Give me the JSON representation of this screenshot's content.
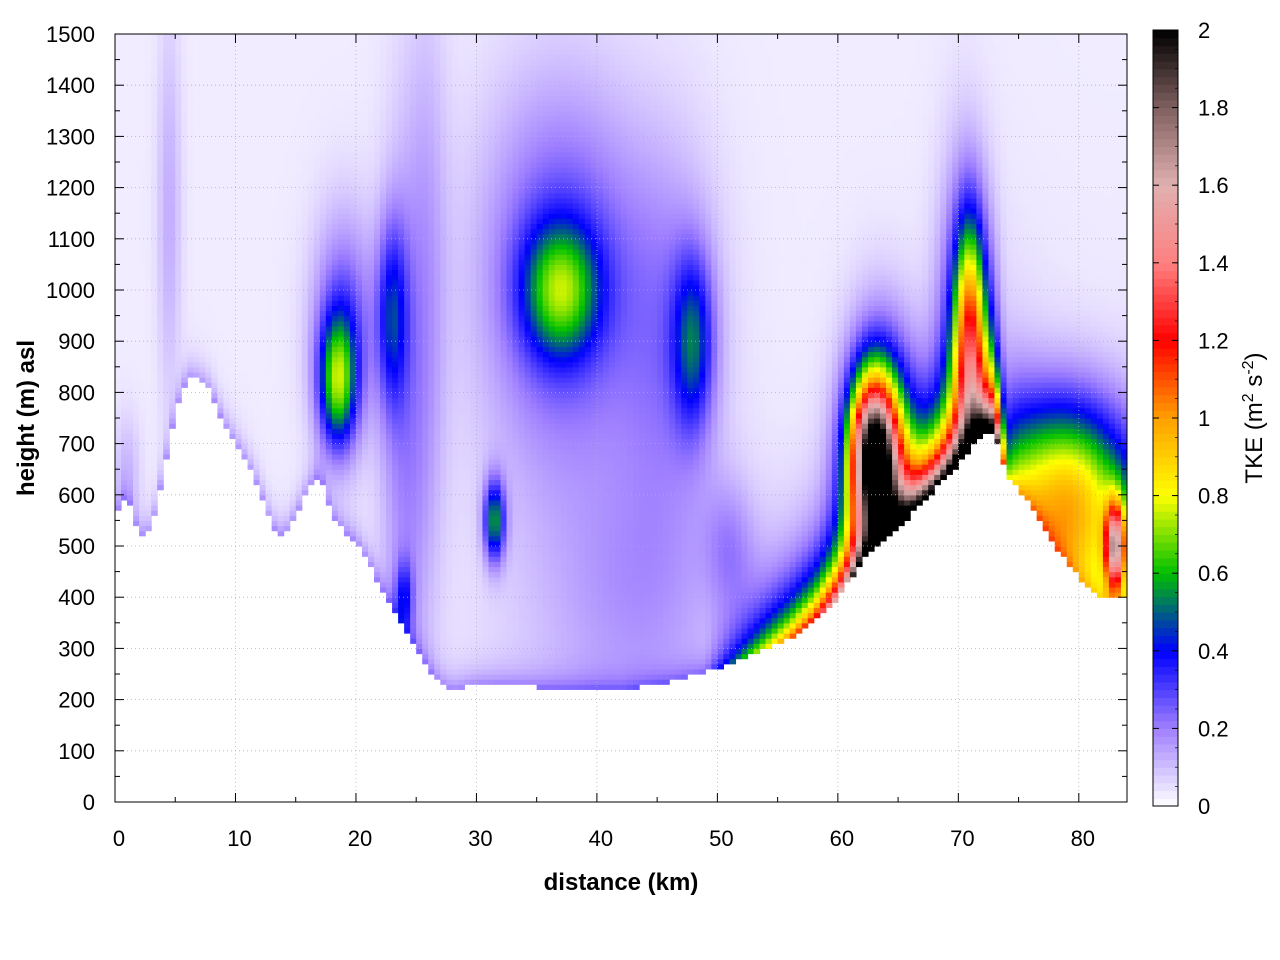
{
  "chart_data": {
    "type": "heatmap",
    "title": "",
    "xlabel": "distance (km)",
    "ylabel": "height (m) asl",
    "xlim": [
      0,
      84
    ],
    "ylim": [
      0,
      1500
    ],
    "x_ticks": [
      0,
      10,
      20,
      30,
      40,
      50,
      60,
      70,
      80
    ],
    "y_ticks": [
      0,
      100,
      200,
      300,
      400,
      500,
      600,
      700,
      800,
      900,
      1000,
      1100,
      1200,
      1300,
      1400,
      1500
    ],
    "grid": true,
    "colorbar": {
      "label_main": "TKE (m",
      "label_sup1": "2",
      "label_mid": " s",
      "label_sup2": "-2",
      "label_end": ")",
      "min": 0,
      "max": 2,
      "ticks": [
        "0",
        "0.2",
        "0.4",
        "0.6",
        "0.8",
        "1",
        "1.2",
        "1.4",
        "1.6",
        "1.8",
        "2"
      ],
      "stops": [
        {
          "v": 0.0,
          "color": "#ffffff"
        },
        {
          "v": 0.2,
          "color": "#a080ff"
        },
        {
          "v": 0.4,
          "color": "#0000ff"
        },
        {
          "v": 0.6,
          "color": "#00c000"
        },
        {
          "v": 0.8,
          "color": "#ffff00"
        },
        {
          "v": 1.0,
          "color": "#ffa000"
        },
        {
          "v": 1.2,
          "color": "#ff0000"
        },
        {
          "v": 1.4,
          "color": "#ff8080"
        },
        {
          "v": 1.6,
          "color": "#e0b0b0"
        },
        {
          "v": 1.8,
          "color": "#806060"
        },
        {
          "v": 2.0,
          "color": "#000000"
        }
      ]
    },
    "terrain_profile": [
      [
        0,
        560
      ],
      [
        1,
        600
      ],
      [
        2,
        520
      ],
      [
        3,
        530
      ],
      [
        4,
        640
      ],
      [
        5,
        760
      ],
      [
        6,
        830
      ],
      [
        7,
        825
      ],
      [
        8,
        800
      ],
      [
        9,
        740
      ],
      [
        10,
        700
      ],
      [
        11,
        660
      ],
      [
        12,
        610
      ],
      [
        13,
        540
      ],
      [
        14,
        520
      ],
      [
        15,
        560
      ],
      [
        16,
        610
      ],
      [
        17,
        640
      ],
      [
        18,
        560
      ],
      [
        19,
        530
      ],
      [
        20,
        510
      ],
      [
        21,
        470
      ],
      [
        22,
        420
      ],
      [
        23,
        380
      ],
      [
        24,
        340
      ],
      [
        25,
        300
      ],
      [
        26,
        260
      ],
      [
        27,
        230
      ],
      [
        28,
        220
      ],
      [
        30,
        230
      ],
      [
        32,
        230
      ],
      [
        35,
        225
      ],
      [
        38,
        222
      ],
      [
        40,
        222
      ],
      [
        42,
        220
      ],
      [
        44,
        228
      ],
      [
        46,
        235
      ],
      [
        48,
        248
      ],
      [
        50,
        262
      ],
      [
        52,
        280
      ],
      [
        54,
        300
      ],
      [
        56,
        320
      ],
      [
        58,
        350
      ],
      [
        60,
        400
      ],
      [
        62,
        470
      ],
      [
        64,
        520
      ],
      [
        66,
        560
      ],
      [
        68,
        610
      ],
      [
        70,
        660
      ],
      [
        72,
        720
      ],
      [
        73,
        720
      ],
      [
        74,
        640
      ],
      [
        76,
        580
      ],
      [
        78,
        500
      ],
      [
        80,
        440
      ],
      [
        82,
        400
      ],
      [
        83.5,
        400
      ]
    ],
    "tke_features": [
      {
        "x": 4.5,
        "z": 1150,
        "sx": 0.7,
        "sz": 260,
        "v": 0.1
      },
      {
        "x": 1.0,
        "z": 650,
        "sx": 0.8,
        "sz": 80,
        "v": 0.08
      },
      {
        "x": 18.5,
        "z": 820,
        "sx": 1.1,
        "sz": 90,
        "v": 0.55
      },
      {
        "x": 19.0,
        "z": 930,
        "sx": 1.8,
        "sz": 150,
        "v": 0.25
      },
      {
        "x": 23.0,
        "z": 950,
        "sx": 0.9,
        "sz": 130,
        "v": 0.32
      },
      {
        "x": 24.0,
        "z": 700,
        "sx": 1.4,
        "sz": 420,
        "v": 0.15
      },
      {
        "x": 24.0,
        "z": 400,
        "sx": 0.5,
        "sz": 50,
        "v": 0.25
      },
      {
        "x": 26.0,
        "z": 1000,
        "sx": 1.2,
        "sz": 400,
        "v": 0.1
      },
      {
        "x": 31.5,
        "z": 550,
        "sx": 0.6,
        "sz": 55,
        "v": 0.5
      },
      {
        "x": 37.0,
        "z": 1000,
        "sx": 2.2,
        "sz": 90,
        "v": 0.45
      },
      {
        "x": 37.0,
        "z": 1050,
        "sx": 4.5,
        "sz": 240,
        "v": 0.25
      },
      {
        "x": 48.0,
        "z": 900,
        "sx": 1.2,
        "sz": 120,
        "v": 0.36
      },
      {
        "x": 46.0,
        "z": 900,
        "sx": 3.0,
        "sz": 260,
        "v": 0.15
      },
      {
        "x": 51.0,
        "z": 500,
        "sx": 1.5,
        "sz": 90,
        "v": 0.12
      },
      {
        "x": 44.0,
        "z": 400,
        "sx": 5.0,
        "sz": 180,
        "v": 0.1
      },
      {
        "x": 38.0,
        "z": 600,
        "sx": 6.0,
        "sz": 400,
        "v": 0.06
      },
      {
        "x": 63.0,
        "z": 680,
        "sx": 1.3,
        "sz": 100,
        "v": 1.5
      },
      {
        "x": 63.5,
        "z": 650,
        "sx": 2.0,
        "sz": 170,
        "v": 0.7
      },
      {
        "x": 71.0,
        "z": 900,
        "sx": 0.9,
        "sz": 160,
        "v": 0.8
      },
      {
        "x": 70.5,
        "z": 850,
        "sx": 1.5,
        "sz": 250,
        "v": 0.35
      },
      {
        "x": 83.0,
        "z": 500,
        "sx": 0.6,
        "sz": 60,
        "v": 1.1
      },
      {
        "x": 80.0,
        "z": 560,
        "sx": 3.5,
        "sz": 130,
        "v": 0.55
      },
      {
        "x": 78.0,
        "z": 650,
        "sx": 4.0,
        "sz": 120,
        "v": 0.3
      }
    ],
    "surface_layer": {
      "x_start": 49.0,
      "x_end": 73.0,
      "peak_v": 1.9,
      "thickness": 90
    }
  }
}
